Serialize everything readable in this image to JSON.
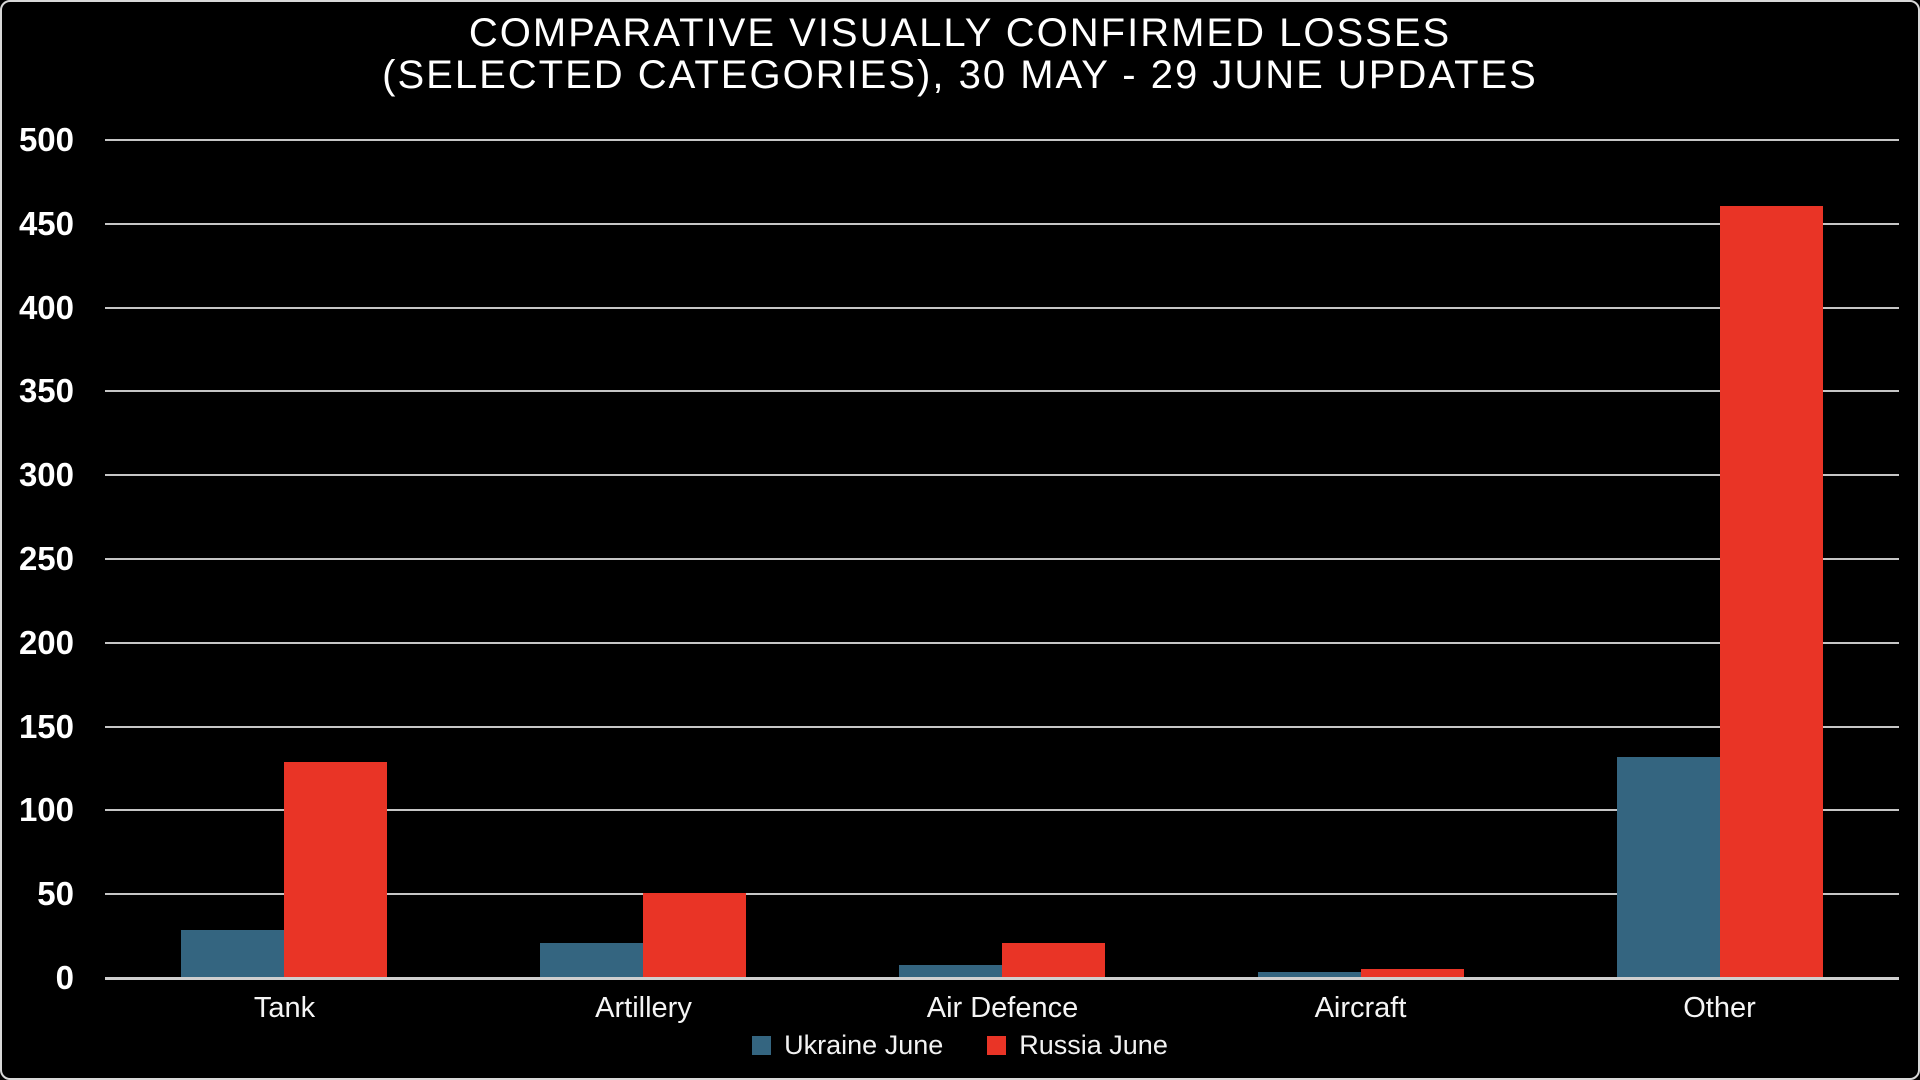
{
  "frame": {
    "background_color": "#000000",
    "border_color": "#d8d8d8"
  },
  "chart_data": {
    "type": "bar",
    "title": "COMPARATIVE VISUALLY CONFIRMED LOSSES (SELECTED CATEGORIES), 30 MAY - 29 JUNE UPDATES",
    "title_lines": [
      "COMPARATIVE VISUALLY CONFIRMED LOSSES",
      "(SELECTED CATEGORIES), 30 MAY - 29 JUNE UPDATES"
    ],
    "categories": [
      "Tank",
      "Artillery",
      "Air Defence",
      "Aircraft",
      "Other"
    ],
    "series": [
      {
        "name": "Ukraine June",
        "color": "#346580",
        "values": [
          28,
          20,
          7,
          3,
          131
        ]
      },
      {
        "name": "Russia June",
        "color": "#e93426",
        "values": [
          128,
          50,
          20,
          5,
          460
        ]
      }
    ],
    "xlabel": "",
    "ylabel": "",
    "ylim": [
      0,
      500
    ],
    "yticks": [
      0,
      50,
      100,
      150,
      200,
      250,
      300,
      350,
      400,
      450,
      500
    ],
    "grid": "horizontal",
    "gridline_color": "#c6c6c6",
    "text_color": "#ffffff",
    "legend_position": "bottom-center"
  }
}
